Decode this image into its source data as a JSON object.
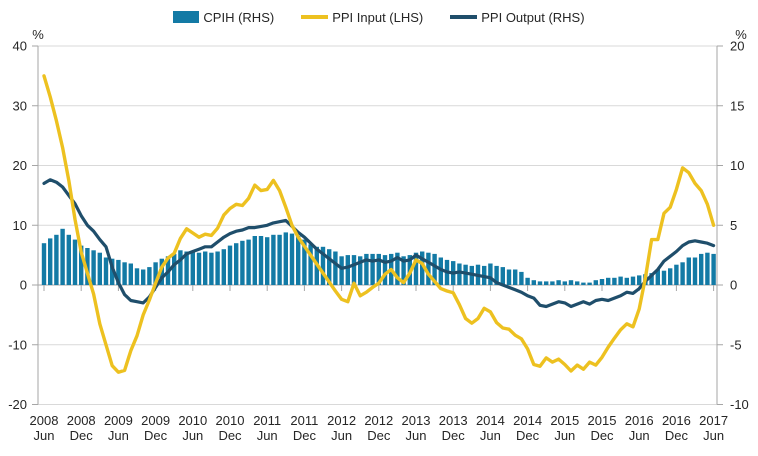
{
  "legend": [
    {
      "label": "CPIH (RHS)",
      "type": "bar",
      "color": "#137AA5"
    },
    {
      "label": "PPI Input (LHS)",
      "type": "line",
      "color": "#EDC120"
    },
    {
      "label": "PPI Output (RHS)",
      "type": "line",
      "color": "#1F4E6B"
    }
  ],
  "chart_data": {
    "type": "combo-bar-line",
    "frequency": "monthly",
    "period_start": "2008-06",
    "period_end": "2017-06",
    "grid": "horizontal",
    "axes": {
      "left": {
        "unit": "%",
        "min": -20,
        "max": 40,
        "ticks": [
          40,
          30,
          20,
          10,
          0,
          -10,
          -20
        ]
      },
      "right": {
        "unit": "%",
        "min": -10,
        "max": 20,
        "ticks": [
          20,
          15,
          10,
          5,
          0,
          -5,
          -10
        ]
      },
      "x": {
        "ticks": [
          {
            "year": "2008",
            "month": "Jun"
          },
          {
            "year": "2008",
            "month": "Dec"
          },
          {
            "year": "2009",
            "month": "Jun"
          },
          {
            "year": "2009",
            "month": "Dec"
          },
          {
            "year": "2010",
            "month": "Jun"
          },
          {
            "year": "2010",
            "month": "Dec"
          },
          {
            "year": "2011",
            "month": "Jun"
          },
          {
            "year": "2011",
            "month": "Dec"
          },
          {
            "year": "2012",
            "month": "Jun"
          },
          {
            "year": "2012",
            "month": "Dec"
          },
          {
            "year": "2013",
            "month": "Jun"
          },
          {
            "year": "2013",
            "month": "Dec"
          },
          {
            "year": "2014",
            "month": "Jun"
          },
          {
            "year": "2014",
            "month": "Dec"
          },
          {
            "year": "2015",
            "month": "Jun"
          },
          {
            "year": "2015",
            "month": "Dec"
          },
          {
            "year": "2016",
            "month": "Jun"
          },
          {
            "year": "2016",
            "month": "Dec"
          },
          {
            "year": "2017",
            "month": "Jun"
          }
        ]
      }
    },
    "series": [
      {
        "name": "CPIH (RHS)",
        "type": "bar",
        "axis": "right",
        "color": "#137AA5",
        "values": [
          3.5,
          3.9,
          4.2,
          4.7,
          4.2,
          3.8,
          3.3,
          3.1,
          2.9,
          2.7,
          2.3,
          2.2,
          2.1,
          1.9,
          1.8,
          1.4,
          1.3,
          1.5,
          1.9,
          2.2,
          2.4,
          2.6,
          2.9,
          2.8,
          2.8,
          2.7,
          2.8,
          2.7,
          2.8,
          3.0,
          3.3,
          3.5,
          3.7,
          3.8,
          4.1,
          4.1,
          4.0,
          4.2,
          4.2,
          4.4,
          4.3,
          4.1,
          3.8,
          3.4,
          3.2,
          3.2,
          3.0,
          2.8,
          2.4,
          2.5,
          2.5,
          2.4,
          2.6,
          2.6,
          2.6,
          2.5,
          2.6,
          2.7,
          2.4,
          2.5,
          2.7,
          2.8,
          2.7,
          2.6,
          2.3,
          2.1,
          2.0,
          1.8,
          1.7,
          1.6,
          1.7,
          1.6,
          1.8,
          1.6,
          1.5,
          1.3,
          1.3,
          1.1,
          0.6,
          0.4,
          0.3,
          0.3,
          0.3,
          0.4,
          0.3,
          0.4,
          0.3,
          0.2,
          0.2,
          0.4,
          0.5,
          0.6,
          0.6,
          0.7,
          0.6,
          0.7,
          0.8,
          0.9,
          1.0,
          1.3,
          1.2,
          1.4,
          1.7,
          1.9,
          2.3,
          2.3,
          2.6,
          2.7,
          2.6
        ]
      },
      {
        "name": "PPI Input (LHS)",
        "type": "line",
        "axis": "left",
        "color": "#EDC120",
        "values": [
          35.0,
          31.5,
          27.5,
          23.0,
          17.5,
          11.0,
          5.5,
          2.0,
          -1.5,
          -6.5,
          -10.0,
          -13.5,
          -14.6,
          -14.3,
          -11.0,
          -8.5,
          -5.0,
          -2.5,
          0.3,
          3.0,
          4.5,
          5.3,
          7.8,
          9.4,
          8.7,
          8.0,
          8.5,
          8.3,
          9.5,
          11.7,
          12.8,
          13.5,
          13.3,
          14.5,
          16.7,
          15.8,
          16.0,
          17.5,
          15.8,
          13.0,
          10.0,
          8.0,
          6.5,
          5.0,
          3.5,
          2.0,
          0.5,
          -1.0,
          -2.4,
          -2.8,
          0.3,
          -1.8,
          -1.2,
          -0.4,
          0.3,
          1.8,
          2.6,
          1.2,
          0.4,
          2.0,
          4.2,
          3.6,
          1.8,
          0.6,
          -0.6,
          -1.0,
          -1.3,
          -3.3,
          -5.6,
          -6.4,
          -5.6,
          -3.9,
          -4.5,
          -6.3,
          -7.2,
          -7.4,
          -8.4,
          -9.0,
          -10.7,
          -13.3,
          -13.6,
          -12.2,
          -12.9,
          -12.4,
          -13.3,
          -14.4,
          -13.4,
          -14.1,
          -12.9,
          -13.4,
          -12.1,
          -10.4,
          -8.9,
          -7.5,
          -6.5,
          -7.0,
          -4.0,
          1.2,
          7.6,
          7.6,
          12.0,
          13.0,
          16.0,
          19.6,
          18.8,
          17.0,
          15.8,
          13.5,
          10.0
        ]
      },
      {
        "name": "PPI Output (RHS)",
        "type": "line",
        "axis": "right",
        "color": "#1F4E6B",
        "values": [
          8.5,
          8.8,
          8.6,
          8.2,
          7.5,
          6.8,
          5.8,
          5.0,
          4.5,
          3.8,
          3.2,
          1.5,
          0.2,
          -0.8,
          -1.3,
          -1.4,
          -1.5,
          -1.0,
          -0.2,
          0.6,
          1.1,
          1.7,
          2.1,
          2.6,
          2.8,
          3.0,
          3.2,
          3.2,
          3.6,
          4.0,
          4.3,
          4.5,
          4.6,
          4.8,
          4.8,
          4.9,
          5.0,
          5.2,
          5.3,
          5.4,
          4.9,
          4.4,
          4.0,
          3.5,
          3.0,
          2.6,
          2.2,
          1.8,
          1.4,
          1.5,
          1.7,
          1.9,
          2.1,
          2.0,
          2.1,
          1.9,
          2.0,
          2.3,
          2.0,
          2.1,
          2.5,
          2.2,
          1.9,
          1.6,
          1.3,
          1.1,
          1.0,
          1.1,
          1.0,
          0.9,
          0.8,
          0.7,
          0.6,
          0.2,
          0.0,
          -0.2,
          -0.4,
          -0.6,
          -0.9,
          -1.1,
          -1.7,
          -1.8,
          -1.6,
          -1.4,
          -1.5,
          -1.8,
          -1.6,
          -1.4,
          -1.6,
          -1.3,
          -1.2,
          -1.3,
          -1.1,
          -0.9,
          -0.6,
          -0.7,
          -0.3,
          0.3,
          0.8,
          1.3,
          2.0,
          2.4,
          2.8,
          3.3,
          3.6,
          3.7,
          3.6,
          3.5,
          3.3
        ]
      }
    ],
    "colors": {
      "grid": "#D9D9D9",
      "axis": "#A6A6A6",
      "text": "#262626"
    }
  }
}
